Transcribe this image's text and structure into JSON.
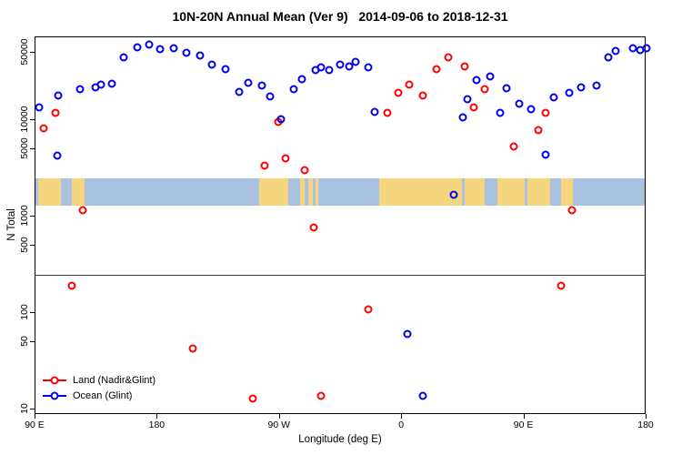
{
  "title": "10N-20N Annual Mean (Ver 9)   2014-09-06 to 2018-12-31",
  "chart_data": {
    "type": "scatter",
    "title": "10N-20N Annual Mean (Ver 9)   2014-09-06 to 2018-12-31",
    "xlabel": "Longitude (deg E)",
    "ylabel": "N Total",
    "y_scale": "log",
    "grid": "off",
    "legend_position": "bottom-left",
    "x_range": [
      90,
      540
    ],
    "y_range": [
      10,
      72000
    ],
    "x_ticks": [
      {
        "lon": 90,
        "label": "90 E"
      },
      {
        "lon": 180,
        "label": "180"
      },
      {
        "lon": 270,
        "label": "90 W"
      },
      {
        "lon": 360,
        "label": "0"
      },
      {
        "lon": 450,
        "label": "90 E"
      },
      {
        "lon": 540,
        "label": "180"
      }
    ],
    "y_ticks": [
      50000,
      10000,
      5000,
      1000,
      500,
      100,
      50,
      10
    ],
    "reference_line": 250,
    "map_band": {
      "description": "10N-20N latitude world map strip, longitude wraps 90E around to 180",
      "value_top": 2500,
      "value_bottom": 1300,
      "ocean_color": "#aac2e2",
      "land_color": "#f5d67e",
      "segments": [
        [
          92,
          109
        ],
        [
          117,
          126
        ],
        [
          255,
          276
        ],
        [
          285,
          288
        ],
        [
          291,
          294
        ],
        [
          296,
          298
        ],
        [
          343,
          404
        ],
        [
          406,
          421
        ],
        [
          430,
          450
        ],
        [
          452,
          469
        ],
        [
          477,
          486
        ]
      ]
    },
    "series": [
      {
        "key": "land",
        "name": "Land (Nadir&Glint)",
        "color": "#ff0000",
        "marker": "open-circle",
        "points": [
          [
            96,
            8200
          ],
          [
            105,
            12000
          ],
          [
            117,
            190
          ],
          [
            125,
            1170
          ],
          [
            206,
            43
          ],
          [
            250,
            13
          ],
          [
            259,
            3400
          ],
          [
            269,
            9600
          ],
          [
            274,
            4000
          ],
          [
            288,
            3000
          ],
          [
            295,
            770
          ],
          [
            300,
            14
          ],
          [
            335,
            110
          ],
          [
            349,
            12000
          ],
          [
            357,
            19300
          ],
          [
            365,
            23400
          ],
          [
            375,
            18000
          ],
          [
            385,
            33700
          ],
          [
            394,
            45000
          ],
          [
            406,
            36000
          ],
          [
            413,
            13500
          ],
          [
            421,
            21000
          ],
          [
            442,
            5300
          ],
          [
            460,
            7800
          ],
          [
            466,
            12000
          ],
          [
            477,
            190
          ],
          [
            485,
            1170
          ]
        ]
      },
      {
        "key": "ocean",
        "name": "Ocean (Glint)",
        "color": "#0000ee",
        "marker": "open-circle",
        "points": [
          [
            93,
            13500
          ],
          [
            106,
            4300
          ],
          [
            107,
            18000
          ],
          [
            123,
            21000
          ],
          [
            134,
            22000
          ],
          [
            138,
            23400
          ],
          [
            146,
            24000
          ],
          [
            155,
            45000
          ],
          [
            165,
            57000
          ],
          [
            174,
            61000
          ],
          [
            182,
            54000
          ],
          [
            192,
            55500
          ],
          [
            201,
            50000
          ],
          [
            211,
            46600
          ],
          [
            220,
            37500
          ],
          [
            230,
            33700
          ],
          [
            240,
            19600
          ],
          [
            247,
            24300
          ],
          [
            257,
            22800
          ],
          [
            263,
            17600
          ],
          [
            271,
            10200
          ],
          [
            280,
            21000
          ],
          [
            286,
            26700
          ],
          [
            296,
            33000
          ],
          [
            300,
            35300
          ],
          [
            306,
            33000
          ],
          [
            314,
            37500
          ],
          [
            321,
            36000
          ],
          [
            326,
            40000
          ],
          [
            335,
            35300
          ],
          [
            340,
            12100
          ],
          [
            364,
            61
          ],
          [
            375,
            14
          ],
          [
            398,
            1700
          ],
          [
            405,
            10700
          ],
          [
            408,
            16300
          ],
          [
            415,
            26200
          ],
          [
            425,
            28600
          ],
          [
            432,
            11900
          ],
          [
            437,
            21400
          ],
          [
            446,
            14800
          ],
          [
            455,
            13000
          ],
          [
            466,
            4400
          ],
          [
            472,
            17200
          ],
          [
            483,
            19300
          ],
          [
            492,
            22000
          ],
          [
            503,
            22800
          ],
          [
            512,
            45000
          ],
          [
            517,
            52000
          ],
          [
            530,
            55500
          ],
          [
            535,
            53100
          ],
          [
            540,
            55500
          ]
        ]
      }
    ]
  },
  "legend": {
    "items": [
      {
        "label": "Land (Nadir&Glint)",
        "color": "#ff0000"
      },
      {
        "label": "Ocean (Glint)",
        "color": "#0000ee"
      }
    ]
  }
}
